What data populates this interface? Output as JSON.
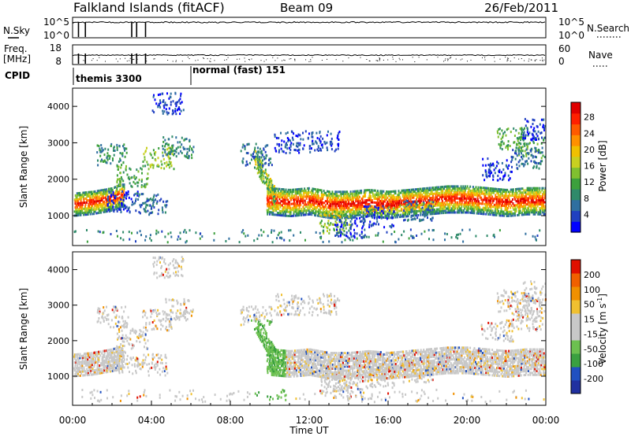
{
  "header": {
    "station": "Falkland Islands (fitACF)",
    "beam": "Beam 09",
    "date": "26/Feb/2011"
  },
  "chart_data": [
    {
      "type": "line",
      "panel": "noise",
      "left_label": "N.Sky",
      "right_label": "N.Search",
      "left_ticks": [
        "10^5",
        "10^0"
      ],
      "right_ticks": [
        "10^5",
        "10^0"
      ],
      "dips_hours": [
        0.3,
        0.65,
        3.0,
        3.25,
        3.7
      ]
    },
    {
      "type": "line",
      "panel": "frequency",
      "left_label": "Freq.",
      "left_unit": "[MHz]",
      "right_label": "Nave",
      "left_ticks": [
        "18",
        "8"
      ],
      "right_ticks": [
        "60",
        "0"
      ]
    },
    {
      "type": "table",
      "panel": "cpid",
      "label": "CPID",
      "segments": [
        {
          "start_hour": 0.0,
          "label": "themis 3300"
        },
        {
          "start_hour": 6.0,
          "label": "normal (fast) 151"
        }
      ]
    },
    {
      "type": "heatmap",
      "panel": "power",
      "ylabel": "Slant Range [km]",
      "ylim": [
        180,
        4500
      ],
      "yticks": [
        1000,
        2000,
        3000,
        4000
      ],
      "colorbar": {
        "label": "Power [dB]",
        "ticks": [
          4,
          8,
          12,
          16,
          20,
          24,
          28
        ],
        "colors": [
          "#0000ff",
          "#2040c0",
          "#2f6fa0",
          "#2f8a6a",
          "#3ca03c",
          "#80c030",
          "#c8d020",
          "#f0c000",
          "#ff9000",
          "#ff5a00",
          "#ff2000",
          "#e00000"
        ]
      },
      "band_main": [
        [
          0.0,
          1350
        ],
        [
          1.0,
          1400
        ],
        [
          2.0,
          1500
        ],
        [
          2.5,
          1600
        ],
        [
          10.0,
          1450
        ],
        [
          11.0,
          1400
        ],
        [
          12.0,
          1450
        ],
        [
          13.0,
          1350
        ],
        [
          14.0,
          1350
        ],
        [
          15.0,
          1400
        ],
        [
          16.0,
          1350
        ],
        [
          17.0,
          1400
        ],
        [
          18.0,
          1450
        ],
        [
          19.0,
          1500
        ],
        [
          20.0,
          1500
        ],
        [
          21.0,
          1450
        ],
        [
          22.0,
          1400
        ],
        [
          23.0,
          1450
        ],
        [
          24.0,
          1450
        ]
      ],
      "blobs": [
        [
          2.0,
          2700,
          3
        ],
        [
          3.0,
          2100,
          4
        ],
        [
          4.3,
          2600,
          5
        ],
        [
          5.3,
          2900,
          3
        ],
        [
          2.5,
          1400,
          1
        ],
        [
          4.0,
          1350,
          2
        ],
        [
          4.8,
          4100,
          1
        ],
        [
          9.3,
          2700,
          2
        ],
        [
          11.0,
          3050,
          1
        ],
        [
          12.7,
          3050,
          1
        ],
        [
          13.3,
          850,
          5
        ],
        [
          14.0,
          700,
          1
        ],
        [
          15.5,
          1000,
          1
        ],
        [
          17.5,
          1150,
          2
        ],
        [
          22.3,
          3150,
          4
        ],
        [
          23.3,
          2900,
          4
        ],
        [
          23.0,
          2600,
          2
        ],
        [
          23.6,
          3400,
          1
        ],
        [
          21.5,
          2300,
          1
        ]
      ]
    },
    {
      "type": "heatmap",
      "panel": "velocity",
      "xlabel": "Time UT",
      "ylabel": "Slant Range [km]",
      "ylim": [
        180,
        4500
      ],
      "yticks": [
        1000,
        2000,
        3000,
        4000
      ],
      "xticks": [
        "00:00",
        "04:00",
        "08:00",
        "12:00",
        "16:00",
        "20:00",
        "00:00"
      ],
      "colorbar": {
        "label": "Velocity [m s",
        "label_sup": "-1",
        "label_end": "]",
        "ticks": [
          200,
          100,
          50,
          15,
          -15,
          -50,
          -100,
          -200
        ],
        "colors": [
          "#2030a0",
          "#2050c0",
          "#3aa040",
          "#6cc050",
          "#c8c8c8",
          "#c8c8c8",
          "#f0c030",
          "#f09000",
          "#f06000",
          "#e01000"
        ]
      }
    }
  ]
}
